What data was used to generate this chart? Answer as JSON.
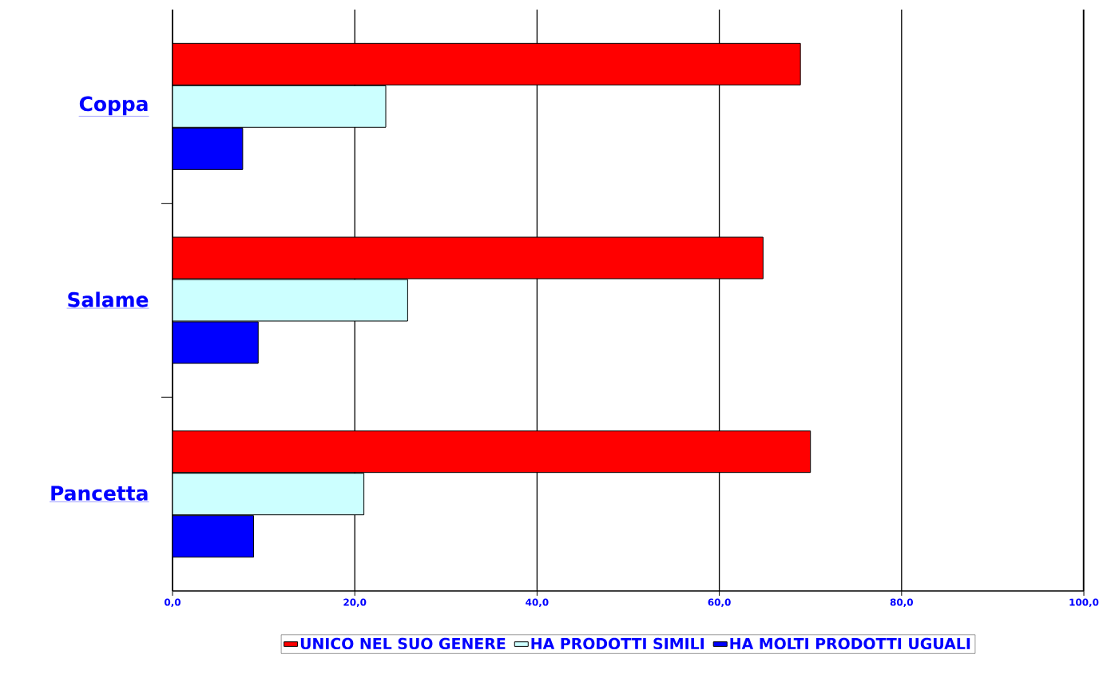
{
  "chart_data": {
    "type": "bar",
    "orientation": "horizontal",
    "categories": [
      "Coppa",
      "Salame",
      "Pancetta"
    ],
    "series": [
      {
        "name": "UNICO NEL SUO GENERE",
        "color": "#ff0000",
        "values": [
          68.9,
          64.8,
          70.0
        ]
      },
      {
        "name": "HA PRODOTTI SIMILI",
        "color": "#ccffff",
        "values": [
          23.4,
          25.8,
          21.0
        ]
      },
      {
        "name": "HA MOLTI PRODOTTI UGUALI",
        "color": "#0000ff",
        "values": [
          7.7,
          9.4,
          8.9
        ]
      }
    ],
    "xlim": [
      0,
      100
    ],
    "xticks": [
      {
        "value": 0,
        "label": "0,0"
      },
      {
        "value": 20,
        "label": "20,0"
      },
      {
        "value": 40,
        "label": "40,0"
      },
      {
        "value": 60,
        "label": "60,0"
      },
      {
        "value": 80,
        "label": "80,0"
      },
      {
        "value": 100,
        "label": "100,0"
      }
    ],
    "grid": "x",
    "legend": "bottom"
  }
}
